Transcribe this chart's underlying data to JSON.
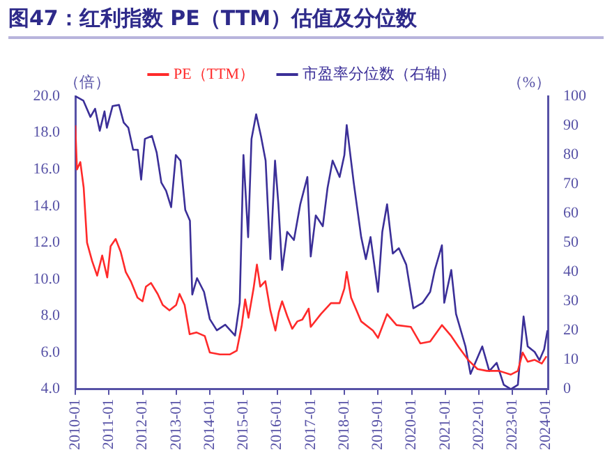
{
  "chart_data": {
    "type": "line",
    "title": "图47：红利指数 PE（TTM）估值及分位数",
    "ylabel": "（倍）",
    "y2label": "（%）",
    "xlim": [
      "2010-01-01",
      "2024-01-19"
    ],
    "xticks": [
      "2010-01",
      "2011-01",
      "2012-01",
      "2013-01",
      "2014-01",
      "2015-01",
      "2016-01",
      "2017-01",
      "2018-01",
      "2019-01",
      "2020-01",
      "2021-01",
      "2022-01",
      "2023-01",
      "2024-01"
    ],
    "ylim": [
      4,
      20
    ],
    "yticks": [
      {
        "value": 4,
        "label": "4.0"
      },
      {
        "value": 6,
        "label": "6.0"
      },
      {
        "value": 8,
        "label": "8.0"
      },
      {
        "value": 10,
        "label": "10.0"
      },
      {
        "value": 12,
        "label": "12.0"
      },
      {
        "value": 14,
        "label": "14.0"
      },
      {
        "value": 16,
        "label": "16.0"
      },
      {
        "value": 18,
        "label": "18.0"
      },
      {
        "value": 20,
        "label": "20.0"
      }
    ],
    "y2lim": [
      0,
      100
    ],
    "y2ticks": [
      0,
      10,
      20,
      30,
      40,
      50,
      60,
      70,
      80,
      90,
      100
    ],
    "legend": "top",
    "marker": "none",
    "line_style": "solid",
    "series": [
      {
        "name": "PE（TTM）",
        "color": "#ff2a2a",
        "x": [
          "2010-01-01",
          "2010-01-19",
          "2010-02-25",
          "2010-04-01",
          "2010-05-07",
          "2010-07-01",
          "2010-08-25",
          "2010-10-19",
          "2010-12-13",
          "2011-01-19",
          "2011-03-13",
          "2011-05-07",
          "2011-07-01",
          "2011-08-25",
          "2011-11-07",
          "2012-01-01",
          "2012-02-07",
          "2012-04-01",
          "2012-06-13",
          "2012-08-07",
          "2012-10-19",
          "2013-01-01",
          "2013-02-07",
          "2013-04-01",
          "2013-05-25",
          "2013-08-07",
          "2013-11-07",
          "2014-01-01",
          "2014-04-19",
          "2014-08-07",
          "2014-10-19",
          "2014-12-13",
          "2015-01-19",
          "2015-02-25",
          "2015-04-19",
          "2015-05-25",
          "2015-07-01",
          "2015-08-25",
          "2015-10-19",
          "2015-12-13",
          "2016-01-19",
          "2016-02-25",
          "2016-04-19",
          "2016-06-13",
          "2016-08-07",
          "2016-10-01",
          "2016-12-09",
          "2017-01-01",
          "2017-04-19",
          "2017-08-07",
          "2017-11-10",
          "2018-01-01",
          "2018-01-26",
          "2018-03-13",
          "2018-07-01",
          "2018-11-07",
          "2019-01-01",
          "2019-04-08",
          "2019-07-19",
          "2019-12-23",
          "2020-04-04",
          "2020-07-19",
          "2020-11-25",
          "2021-03-05",
          "2021-05-25",
          "2021-09-05",
          "2021-12-16",
          "2022-03-27",
          "2022-08-07",
          "2022-12-13",
          "2023-02-28",
          "2023-04-19",
          "2023-06-13",
          "2023-08-28",
          "2023-11-14",
          "2024-01-04"
        ],
        "values": [
          18.4,
          16.0,
          16.4,
          15.0,
          12.0,
          11.0,
          10.2,
          11.3,
          10.1,
          11.8,
          12.2,
          11.5,
          10.4,
          9.9,
          9.0,
          8.8,
          9.6,
          9.8,
          9.2,
          8.6,
          8.3,
          8.6,
          9.2,
          8.6,
          7.0,
          7.1,
          6.9,
          6.0,
          5.9,
          5.9,
          6.1,
          7.5,
          8.9,
          7.9,
          9.5,
          10.8,
          9.6,
          9.9,
          8.3,
          7.2,
          8.2,
          8.8,
          8.0,
          7.3,
          7.7,
          7.8,
          8.4,
          7.4,
          8.1,
          8.7,
          8.7,
          9.5,
          10.4,
          9.0,
          7.7,
          7.2,
          6.8,
          8.1,
          7.5,
          7.4,
          6.5,
          6.6,
          7.5,
          6.9,
          6.3,
          5.6,
          5.1,
          5.0,
          5.0,
          4.8,
          5.0,
          6.0,
          5.5,
          5.6,
          5.4,
          5.8
        ]
      },
      {
        "name": "市盈率分位数（右轴）",
        "color": "#3b2f98",
        "axis": "y2",
        "x": [
          "2010-01-01",
          "2010-03-27",
          "2010-06-13",
          "2010-08-03",
          "2010-09-23",
          "2010-11-14",
          "2010-12-09",
          "2011-02-10",
          "2011-04-19",
          "2011-06-09",
          "2011-07-29",
          "2011-09-20",
          "2011-11-10",
          "2011-12-16",
          "2012-01-26",
          "2012-04-11",
          "2012-06-02",
          "2012-07-22",
          "2012-09-13",
          "2012-11-07",
          "2012-12-27",
          "2013-02-17",
          "2013-04-08",
          "2013-05-28",
          "2013-06-23",
          "2013-08-14",
          "2013-10-29",
          "2014-01-01",
          "2014-03-16",
          "2014-06-16",
          "2014-10-01",
          "2014-11-21",
          "2015-01-01",
          "2015-02-21",
          "2015-03-27",
          "2015-05-17",
          "2015-07-08",
          "2015-08-28",
          "2015-10-19",
          "2015-12-09",
          "2016-01-15",
          "2016-02-25",
          "2016-04-19",
          "2016-07-01",
          "2016-09-09",
          "2016-11-25",
          "2017-01-01",
          "2017-02-25",
          "2017-05-10",
          "2017-07-01",
          "2017-08-25",
          "2017-11-10",
          "2018-01-01",
          "2018-01-26",
          "2018-04-11",
          "2018-07-01",
          "2018-08-21",
          "2018-10-11",
          "2019-01-01",
          "2019-02-17",
          "2019-04-08",
          "2019-06-09",
          "2019-08-14",
          "2019-11-03",
          "2020-01-19",
          "2020-04-29",
          "2020-07-19",
          "2020-09-09",
          "2020-11-25",
          "2020-12-20",
          "2021-03-05",
          "2021-04-26",
          "2021-08-07",
          "2021-10-01",
          "2022-02-07",
          "2022-04-22",
          "2022-07-11",
          "2022-09-27",
          "2022-12-13",
          "2023-02-28",
          "2023-04-29",
          "2023-06-13",
          "2023-08-28",
          "2023-10-19",
          "2023-12-09",
          "2024-01-15"
        ],
        "values": [
          100,
          98.5,
          92.9,
          95.7,
          88.2,
          94.8,
          89.2,
          96.6,
          97.0,
          91.0,
          89.2,
          81.7,
          81.7,
          71.5,
          85.4,
          86.4,
          80.8,
          70.5,
          67.7,
          62.1,
          79.9,
          78.0,
          61.2,
          57.5,
          32.3,
          37.9,
          33.2,
          23.9,
          20.1,
          22.0,
          18.3,
          29.5,
          79.9,
          51.9,
          85.4,
          93.8,
          86.4,
          78.0,
          44.4,
          78.0,
          63.1,
          40.7,
          53.7,
          50.9,
          63.1,
          72.4,
          45.3,
          59.3,
          55.6,
          68.7,
          78.0,
          72.4,
          79.9,
          90.1,
          70.5,
          51.9,
          44.4,
          51.9,
          33.2,
          53.7,
          63.1,
          46.3,
          48.1,
          42.5,
          27.6,
          29.5,
          33.2,
          40.7,
          49.1,
          29.5,
          40.7,
          25.7,
          14.6,
          5.2,
          14.6,
          6.2,
          9.0,
          1.5,
          0,
          1.5,
          24.8,
          14.6,
          12.7,
          9.9,
          13.6,
          20.1
        ]
      }
    ]
  }
}
